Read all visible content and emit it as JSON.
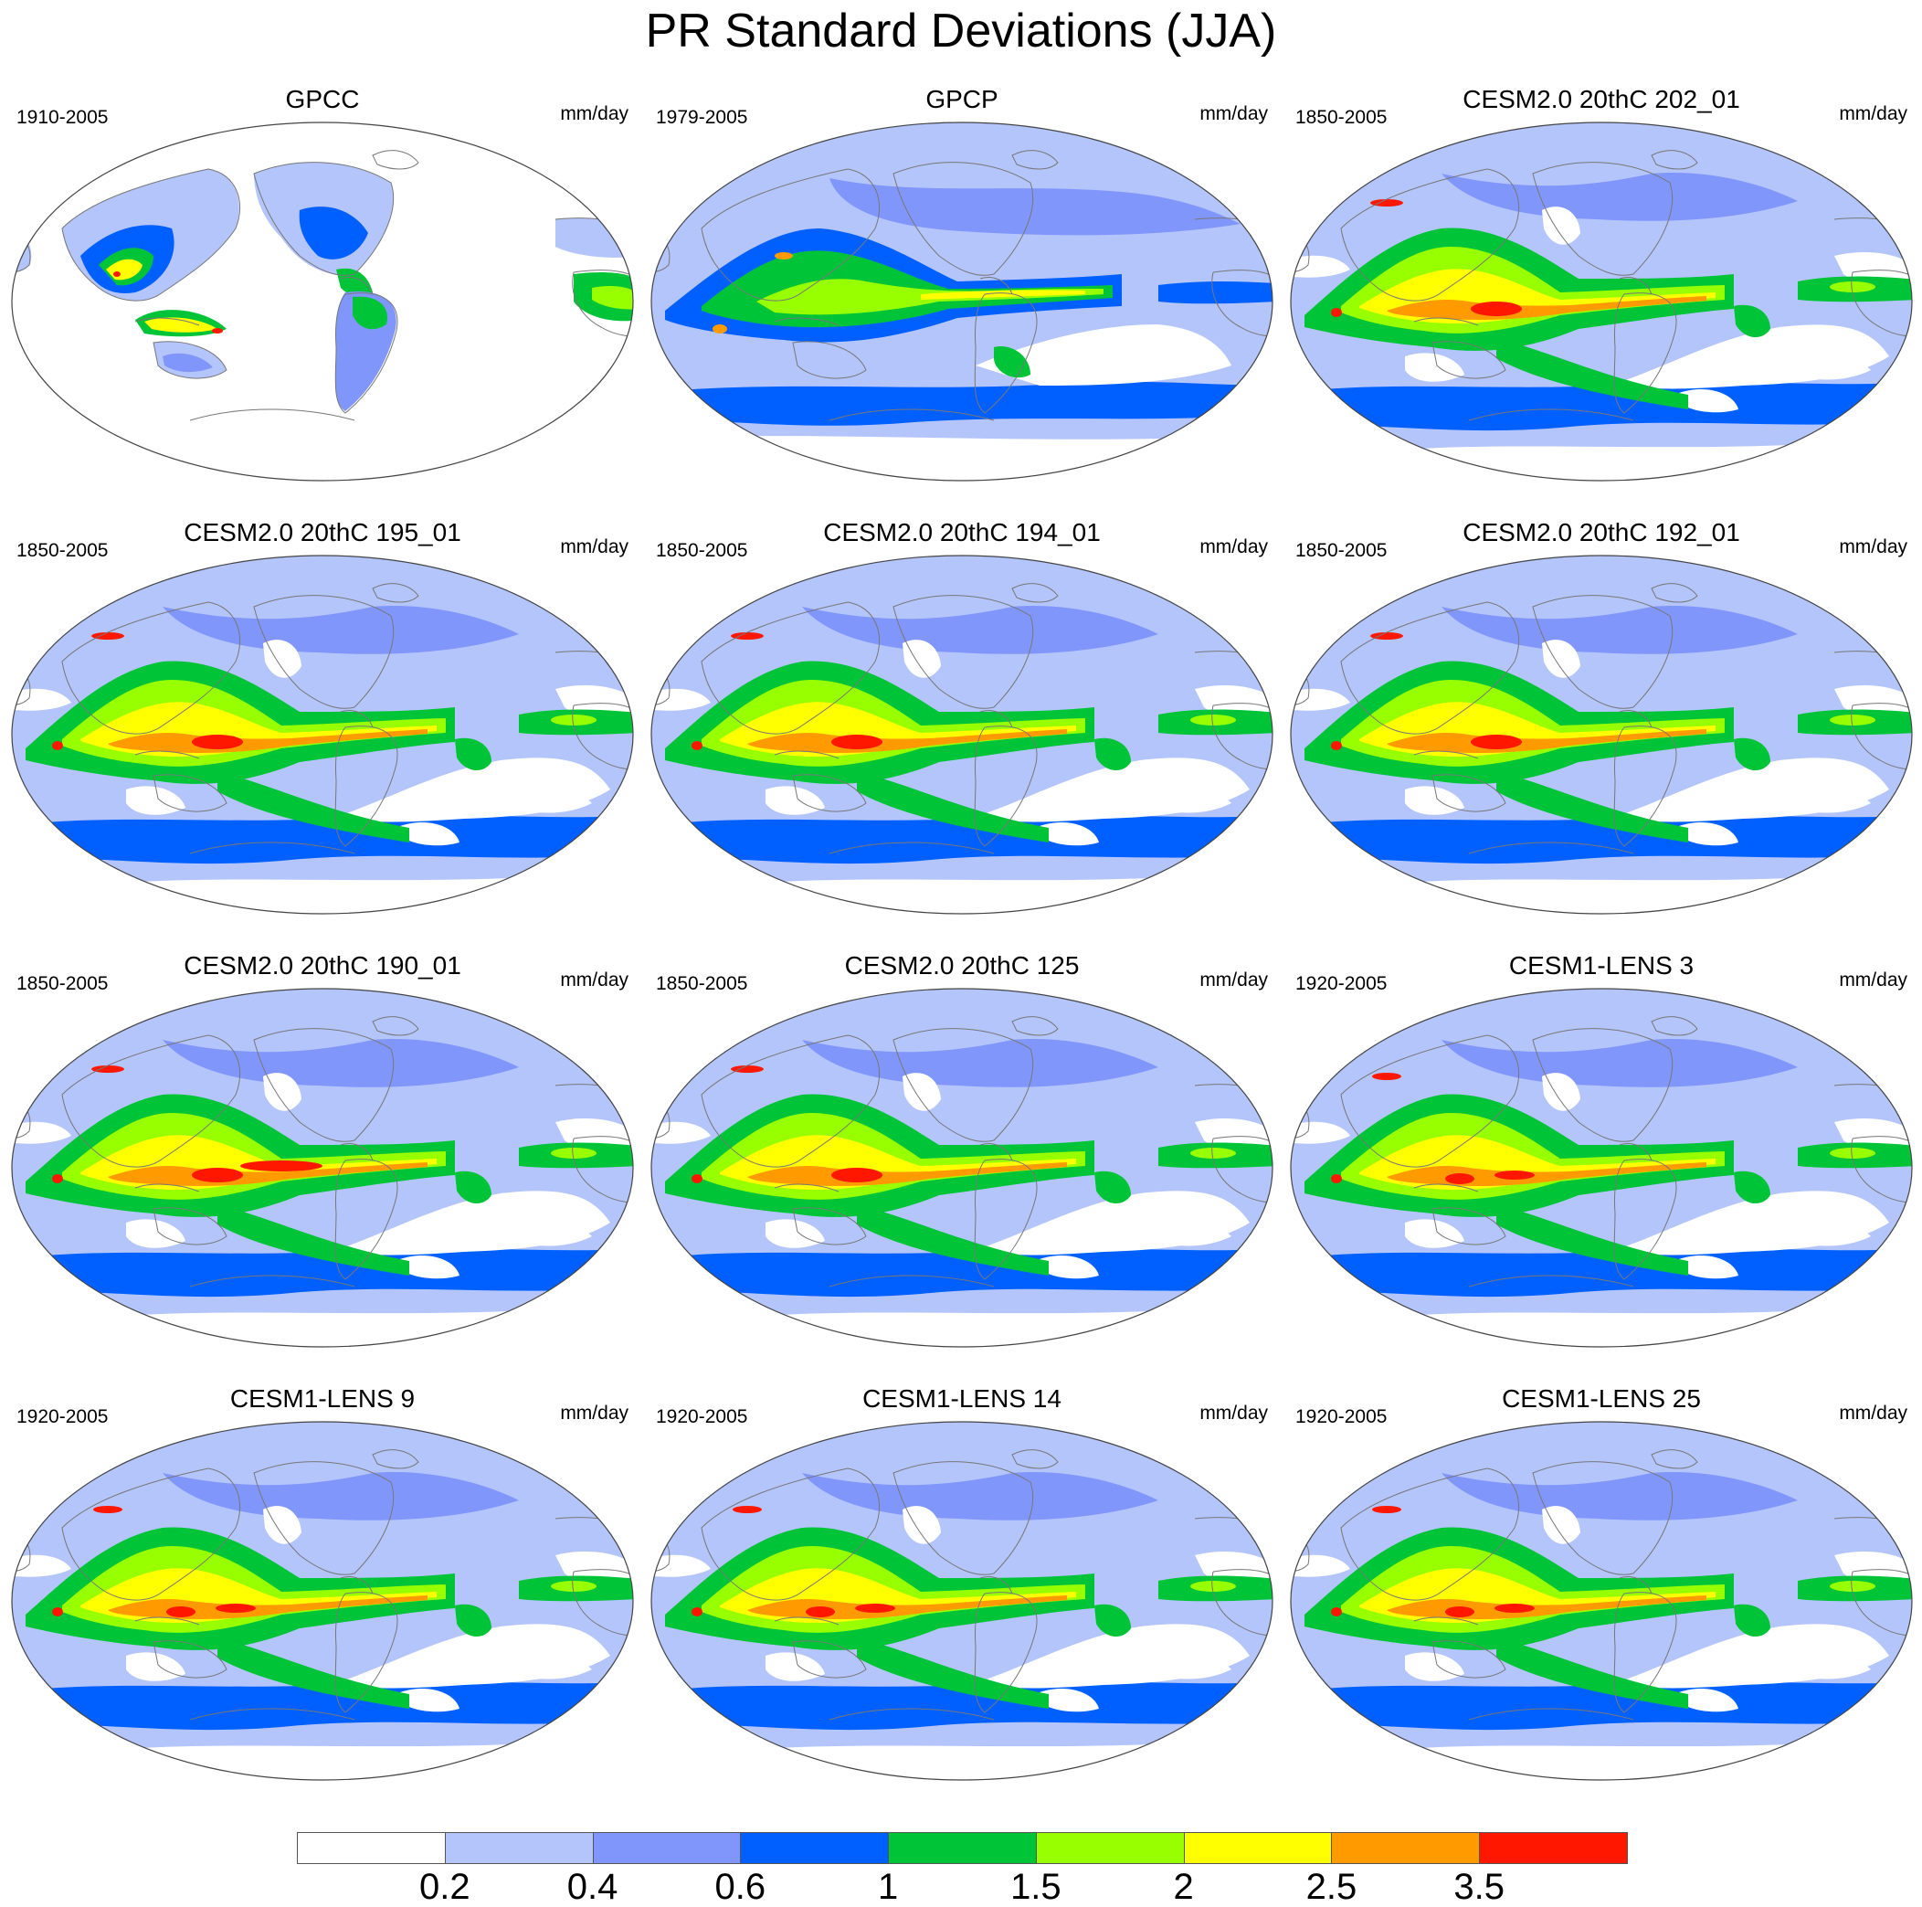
{
  "title": "PR Standard Deviations (JJA)",
  "panels": [
    {
      "title": "GPCC",
      "period": "1910-2005",
      "units": "mm/day",
      "style": "gpcc"
    },
    {
      "title": "GPCP",
      "period": "1979-2005",
      "units": "mm/day",
      "style": "obs"
    },
    {
      "title": "CESM2.0 20thC 202_01",
      "period": "1850-2005",
      "units": "mm/day",
      "style": "cesm2"
    },
    {
      "title": "CESM2.0 20thC 195_01",
      "period": "1850-2005",
      "units": "mm/day",
      "style": "cesm2"
    },
    {
      "title": "CESM2.0 20thC 194_01",
      "period": "1850-2005",
      "units": "mm/day",
      "style": "cesm2"
    },
    {
      "title": "CESM2.0 20thC 192_01",
      "period": "1850-2005",
      "units": "mm/day",
      "style": "cesm2"
    },
    {
      "title": "CESM2.0 20thC 190_01",
      "period": "1850-2005",
      "units": "mm/day",
      "style": "cesm2"
    },
    {
      "title": "CESM2.0 20thC 125",
      "period": "1850-2005",
      "units": "mm/day",
      "style": "cesm2"
    },
    {
      "title": "CESM1-LENS 3",
      "period": "1920-2005",
      "units": "mm/day",
      "style": "lens"
    },
    {
      "title": "CESM1-LENS 9",
      "period": "1920-2005",
      "units": "mm/day",
      "style": "lens"
    },
    {
      "title": "CESM1-LENS 14",
      "period": "1920-2005",
      "units": "mm/day",
      "style": "lens"
    },
    {
      "title": "CESM1-LENS 25",
      "period": "1920-2005",
      "units": "mm/day",
      "style": "lens"
    }
  ],
  "colorbar": {
    "levels": [
      "0.2",
      "0.4",
      "0.6",
      "1",
      "1.5",
      "2",
      "2.5",
      "3.5"
    ],
    "colors": [
      "#ffffff",
      "#b4c5fb",
      "#8196fb",
      "#0060ff",
      "#00c437",
      "#97ff00",
      "#ffff00",
      "#ff9a00",
      "#ff1700"
    ]
  }
}
